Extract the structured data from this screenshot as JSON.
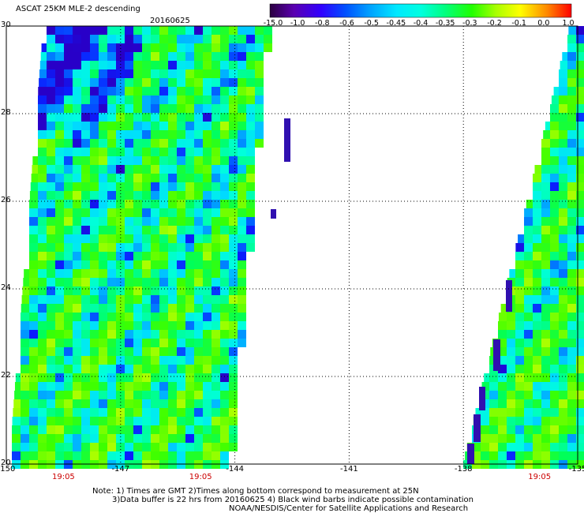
{
  "title": "ASCAT 25KM MLE-2 descending",
  "date": "20160625",
  "colorbar": {
    "ticks": [
      "-15.0",
      "-1.0",
      "-0.8",
      "-0.6",
      "-0.5",
      "-0.45",
      "-0.4",
      "-0.35",
      "-0.3",
      "-0.2",
      "-0.1",
      "0.0",
      "1.0"
    ],
    "colors": [
      "#3a0050",
      "#5a00a0",
      "#4400e0",
      "#0022ff",
      "#0070ff",
      "#00b8ff",
      "#00ffff",
      "#00ff90",
      "#00ff00",
      "#88ff00",
      "#ffff00",
      "#ff9000",
      "#ff0000"
    ]
  },
  "axes": {
    "y_ticks": [
      "30",
      "28",
      "26",
      "24",
      "22",
      "20"
    ],
    "x_ticks": [
      "-150",
      "-147",
      "-144",
      "-141",
      "-138",
      "-135"
    ],
    "pass_times": [
      "19:05",
      "19:05",
      "19:05"
    ]
  },
  "notes": {
    "line1": "Note: 1) Times are GMT 2)Times along bottom correspond to measurement at 25N",
    "line2": "3)Data buffer is 22 hrs from 20160625 4) Black wind barbs indicate possible contamination",
    "line3": "NOAA/NESDIS/Center for Satellite Applications and Research"
  },
  "swaths": [
    {
      "name": "west swath",
      "lon_range_at_30N": [
        -149.0,
        -143.2
      ],
      "lon_range_at_20N": [
        -149.9,
        -144.2
      ]
    },
    {
      "name": "east swath",
      "lon_range_at_30N": [
        -135.2,
        -135.0
      ],
      "lon_range_at_20N": [
        -138.0,
        -135.0
      ]
    }
  ],
  "region": {
    "lat_range": [
      20,
      30
    ],
    "lon_range": [
      -150,
      -135
    ]
  }
}
